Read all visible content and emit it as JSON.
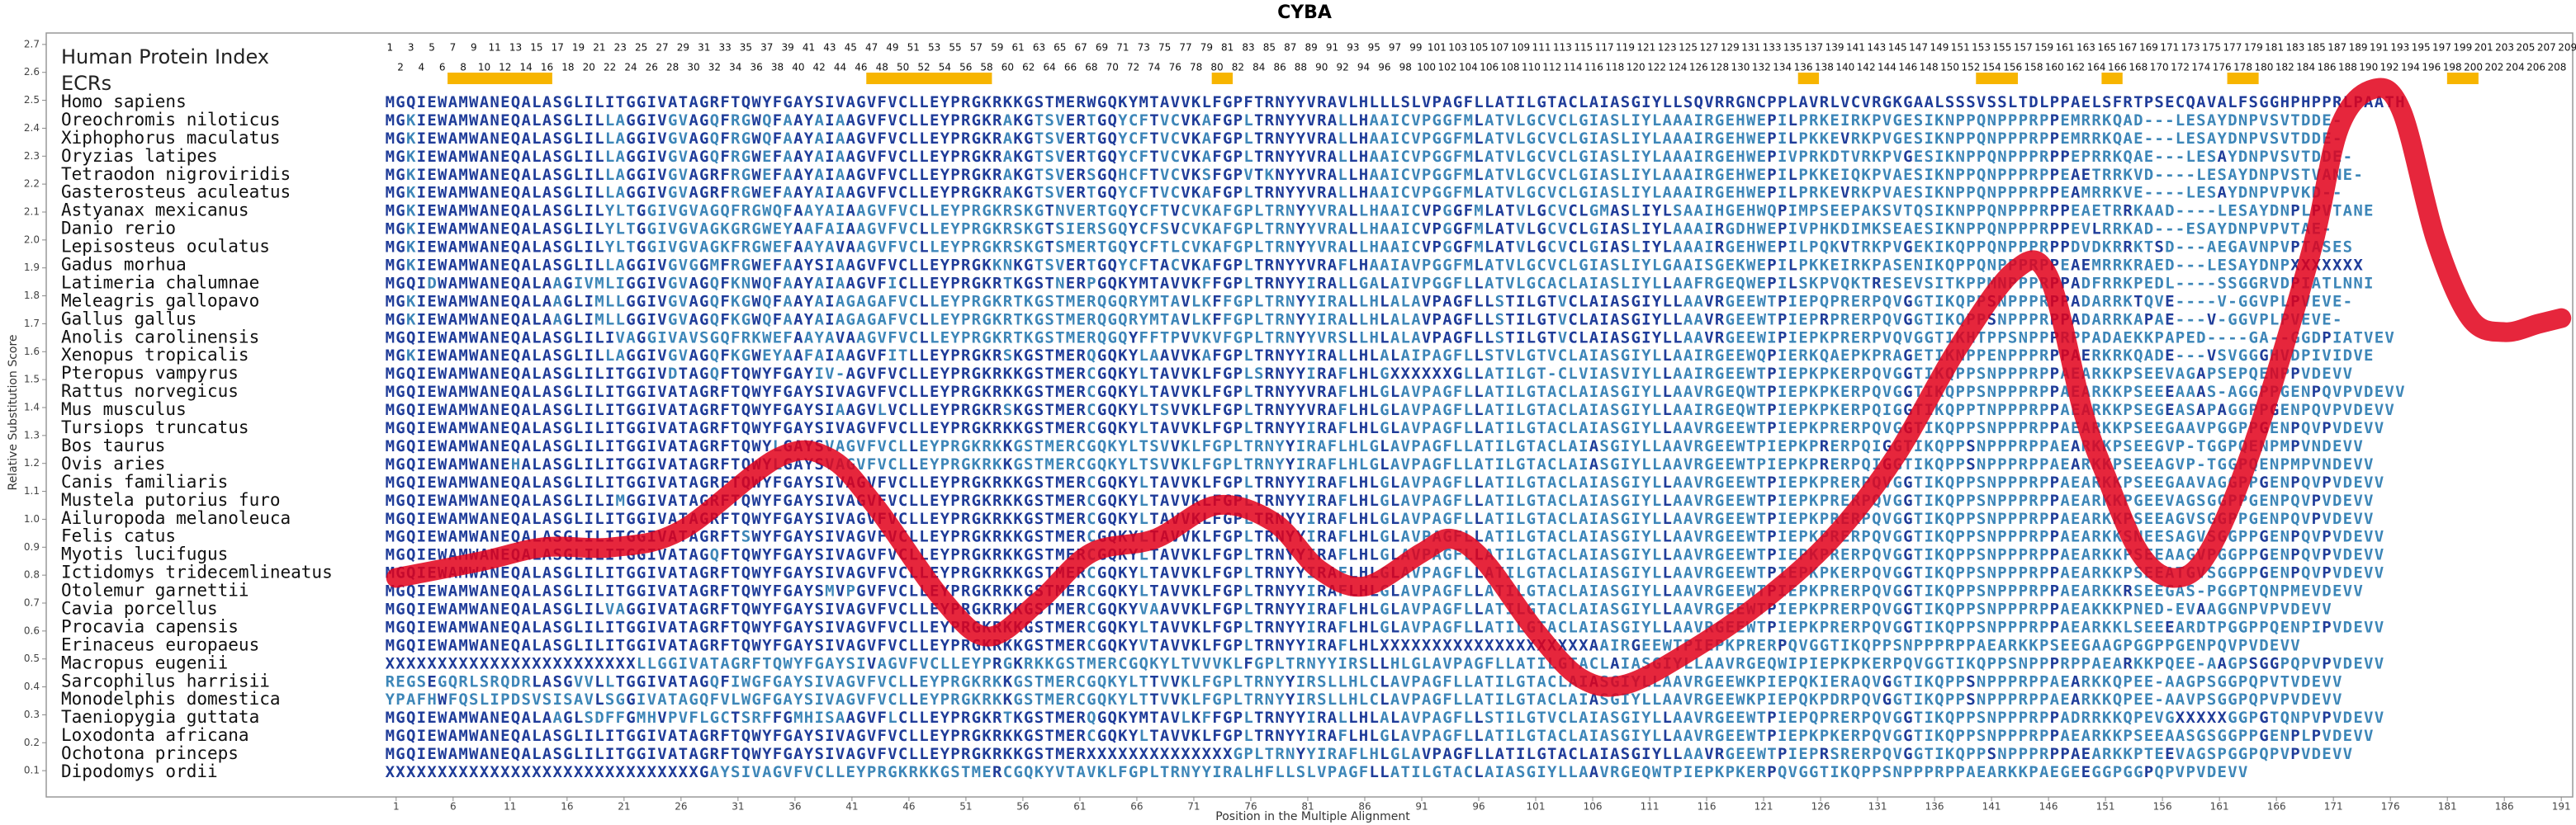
{
  "chart_data": {
    "type": "line",
    "title": "CYBA",
    "index_heading": "Human Protein Index",
    "ecr_heading": "ECRs",
    "x_label": "Position in the Multiple Alignment",
    "y_label": "Relative Substitution Score",
    "xlim": [
      0,
      192
    ],
    "ylim": [
      0,
      2.8
    ],
    "xticks": [
      1,
      6,
      11,
      16,
      21,
      26,
      31,
      36,
      41,
      46,
      51,
      56,
      61,
      66,
      71,
      76,
      81,
      86,
      91,
      96,
      101,
      106,
      111,
      116,
      121,
      126,
      131,
      136,
      141,
      146,
      151,
      156,
      161,
      166,
      171,
      176,
      181,
      186,
      191
    ],
    "yticks": [
      0.1,
      0.2,
      0.3,
      0.4,
      0.5,
      0.6,
      0.7,
      0.8,
      0.9,
      {
        "value": 1,
        "label": "1.0"
      },
      1.1,
      1.2,
      1.3,
      1.4,
      1.5,
      1.6,
      1.7,
      1.8,
      1.9,
      {
        "value": 2,
        "label": "2.0"
      },
      2.1,
      2.2,
      2.3,
      2.4,
      2.5,
      2.6,
      2.7
    ],
    "human_index": [
      1,
      2,
      3,
      4,
      5,
      6,
      7,
      8,
      9,
      10,
      11,
      12,
      13,
      14,
      15,
      16,
      17,
      18,
      19,
      20,
      21,
      22,
      23,
      24,
      25,
      26,
      27,
      28,
      29,
      30,
      31,
      32,
      33,
      34,
      35,
      36,
      37,
      38,
      39,
      40,
      41,
      42,
      43,
      44,
      45,
      46,
      47,
      48,
      49,
      50,
      51,
      52,
      53,
      54,
      55,
      56,
      57,
      58,
      59,
      60,
      61,
      62,
      63,
      64,
      65,
      66,
      67,
      68,
      69,
      70,
      71,
      72,
      73,
      74,
      75,
      76,
      77,
      78,
      79,
      80,
      81,
      82,
      83,
      84,
      85,
      86,
      87,
      88,
      89,
      90,
      91,
      92,
      93,
      94,
      95,
      96,
      97,
      98,
      99,
      100,
      101,
      102,
      103,
      104,
      105,
      106,
      107,
      108,
      109,
      110,
      111,
      112,
      113,
      114,
      115,
      116,
      117,
      118,
      119,
      120,
      121,
      122,
      123,
      124,
      125,
      126,
      127,
      128,
      129,
      130,
      131,
      132,
      133,
      134,
      135,
      136,
      137,
      138,
      139,
      140,
      141,
      142,
      143,
      144,
      145,
      146,
      147,
      148,
      149,
      150,
      151,
      152,
      153,
      154,
      155,
      156,
      157,
      158,
      159,
      160,
      161,
      162,
      163,
      164,
      165,
      166,
      167,
      168,
      169,
      170,
      171,
      172,
      173,
      174,
      175,
      176,
      177,
      178,
      179,
      180,
      181,
      182,
      183,
      184,
      185,
      186,
      187,
      188,
      189,
      190,
      191,
      192,
      193,
      194,
      195,
      196,
      197,
      198,
      199,
      200,
      201,
      202,
      203,
      204,
      205,
      206,
      207,
      208,
      209
    ],
    "ecrs": [
      [
        7,
        16
      ],
      [
        47,
        58
      ],
      [
        80,
        81
      ],
      [
        136,
        137
      ],
      [
        153,
        156
      ],
      [
        165,
        166
      ],
      [
        177,
        179
      ],
      [
        198,
        200
      ]
    ],
    "ecr_color": "#f7b500",
    "conserved_color": "#1f3c99",
    "variant_color": "#3d86b8",
    "rows": [
      {
        "name": "Homo sapiens",
        "sequence": "MGQIEWAMWANEQALASGLILITGGIVATAGRFTQWYFGAYSIVAGVFVCLLEYPRGKRKKGSTMERWGQKYMTAVVKLFGPFTRNYYVRAVLHLLLSLVPAGFLLATILGTACLAIASGIYLLSQVRRGNCPPLAVRLVCVRGKGAALSSSVSSLTDLPPAELSFRTPSECQAVALFSGGHPHPPRLPAATH"
      },
      {
        "name": "Oreochromis niloticus",
        "sequence": "MGKIEWAMWANEQALASGLILLAGGIVGVAGQFRGWQFAAYAIAAGVFVCLLEYPRGKRAKGTSVERTGQYCFTVCVKAFGPLTRNYYVRALLHAAICVPGGFMLATVLGCVCLGIASLIYLAAAIRGEHWEPILPRKEIRKPVGESIKNPPQNPPPRPPEMRRKQAD---LESAYDNPVSVTDDE-"
      },
      {
        "name": "Xiphophorus maculatus",
        "sequence": "MGKIEWAMWANEQALASGLILLAGGIVGVAGQFRGWQFAAYAIAAGVFVCLLEYPRGKRAKGTSVERTGQYCFTVCVKAFGPLTRNYYVRALLHAAICVPGGFMLATVLGCVCLGIASLIYLAAAIRGEHWEPILPKKEVRKPVGESIKNPPQNPPPRPPEMRRKQAE---LESAYDNPVSVTDDE-"
      },
      {
        "name": "Oryzias latipes",
        "sequence": "MGKIEWAMWANEQALASGLILLAGGIVGVAGQFRGWEFAAYAIAAGVFVCLLEYPRGKRAKGTSVERTGQYCFTVCVKAFGPLTRNYYVRALLHAAICVPGGFMLATVLGCVCLGIASLIYLAAAIRGEHWEPIVPRKDTVRKPVGESIKNPPQNPPPRPPEPRRKQAE---LESAYDNPVSVTDDE-"
      },
      {
        "name": "Tetraodon nigroviridis",
        "sequence": "MGKIEWAMWANEQALASGLILLAGGIVGVAGRFRGWEFAAYAIAAGVFVCLLEYPRGKRAKGTSVERSGQHCFTVCVKSFGPVTKNYYVRALLHAAICVPGGFMLATVLGCVCLGIASLIYLAAAIRGEHWEPILPKKEIQKPVAESIKNPPQNPPPRPPEAETRRKVD----LESAYDNPVSTVANE-"
      },
      {
        "name": "Gasterosteus aculeatus",
        "sequence": "MGKIEWAMWANEQALASGLILLAGGIVGVAGRFRGWEFAAYAIAAGVFVCLLEYPRGKRAKGTSVERTGQYCFTVCVKAFGPLTRNYYVRALLHAAICVPGGFMLATVLGCVCLGIASLIYLAAAIRGEHWEPILPRKEVRKPVAESIKNPPQNPPPRPPEAMRRKVE----LESAYDNPVPVKD--"
      },
      {
        "name": "Astyanax mexicanus",
        "sequence": "MGKIEWAMWANEQALASGLILYLTGGIVGVAGQFRGWQFAAYAIAAGVFVCLLEYPRGKRSKGTNVERTGQYCFTVCVKAFGPLTRNYYVRALLHAAICVPGGFMLATVLGCVCLGMASLIYLSAAIHGEHWQPIMPSEEPAKSVTQSIKNPPQNPPPRPPEAETRRKAAD----LESAYDNPLPVTANE"
      },
      {
        "name": "Danio rerio",
        "sequence": "MGKIEWAMWANEQALASGLILYLTGGIVGVAGKGRGWEYAAFAIAAGVFVCLLEYPRGKRSKGTSIERSGQYCFSVCVKAFGPLTRNYYVRALLHAAICVPGGFMLATVLGCVCLGIASLIYLAAAIRGDHWEPIVPHKDIMKSEAESIKNPPQNPPPRPPEVLRRKAD---ESAYDNPVPVTAE-"
      },
      {
        "name": "Lepisosteus oculatus",
        "sequence": "MGKIEWAMWANEQALASGLILYLTGGIVGVAGKFRGWEFAAYAVAAGVFVCLLEYPRGKRSKGTSMERTGQYCFTLCVKAFGPLTRNYYVRALLHAAICVPGGFMLATVLGCVCLGIASLIYLAAAIRGEHWEPILPQKVTRKPVGEKIKQPPQNPPPRPPDVDKRRKTSD---AEGAVNPVPTASES"
      },
      {
        "name": "Gadus morhua",
        "sequence": "MGKIEWAMWANEQALASGLILLAGGIVGVGGMFRGWEFAAYSIAAGVFVCLLEYPRGKKNKGTSVERTGQYCFTACVKAFGPLTRNYYVRAFLHAAIAVPGGFMLATVLGCVCLGIASLIYLGAAISGEKWEPILPKKEIRKPASENIKQPPQNPPPRPPEAEMRRKRAED---LESAYDNPXXXXXXX"
      },
      {
        "name": "Latimeria chalumnae",
        "sequence": "MGQIDWAMWANEQALAAGIVMLIGGIVGVAGQFKNWQFAAYAIAAGVFICLLEYPRGKRTKGSTNERPGQKYMTAVVKFFGPLTRNYYIRALLGALAIVPGGFLLATVLGCACLAIASLIYLLAAFRGEQWEPILSKPVQKTRESEVSITKPPMNPPPRPPADFRRKPEDL----SSGGRVDPIATLNNI"
      },
      {
        "name": "Meleagris gallopavo",
        "sequence": "MGKIEWAMWANEQALAAGLIMLLGGIVGVAGQFKGWQFAAYAIAGAGAFVCLLEYPRGKRTKGSTMERQGQRYMTAVLKFFGPLTRNYYIRALLHLALAVPAGFLLSTILGTVCLAIASGIYLLAAVRGEEWTPIEPQPRERPQVGGTIKQPPSNPPPRPPADARRKTQVE----V-GGVPLPVEVE-"
      },
      {
        "name": "Gallus gallus",
        "sequence": "MGKIEWAMWANEQALAAGLIMLLGGIVGVAGQFKGWQFAAYAIAGAGAFVCLLEYPRGKRTKGSTMERQGQRYMTAVLKFFGPLTRNYYIRALLHLALAVPAGFLLSTILGTVCLAIASGIYLLAAVRGEEWTPIEPRPRERPQVGGTIKQPPSNPPPRPPADARRKAPAE---V-GGVPLPVEVE-"
      },
      {
        "name": "Anolis carolinensis",
        "sequence": "MGQIEWAMWANEQALASGLILIVAGGIVAVSGQFRKWEFAAYAVAAGVFVCLLEYPRGKRTKGSTMERQGQYFFTPVVKVFGPLTRNYYVRSLLHLALAVPAGFLLSTILGTVCLAIASGIYLLAAVRGEEWIPIEPKPRERPVQVGGTIKHTPPSNPPPRPPADAEKKPAPED----GA--GGDPIATVEV"
      },
      {
        "name": "Xenopus tropicalis",
        "sequence": "MGKIEWAMWANEQALASGLILLAGGIVGVAGQFKGWEYAAFAIAAGVFITLLEYPRGKRSKGSTMERQGQKYLAAVVKAFGPLTRNYYIRALLHLALAIPAGFLLSTVLGTVCLAIASGIYLLAAIRGEEWQPIERKQAEPKPRAGETIKNPPENPPPRPPAERKRKQADE---VSVGGGHVDPIVIDVE"
      },
      {
        "name": "Pteropus vampyrus",
        "sequence": "MGQIEWAMWANEQALASGLILITGGIVDTAGQFTQWYFGAYIV-AGVFVCLLEYPRGKRKKGSTMERCGQKYLTAVVKLFGPLSRNYYIRAFLHLGXXXXXXGLLATILGT-CLVIASVIYLLAAIRGEEWTPIEPKPKERPQVGGTIKQPPSNPPPRPPAEARKKPSEEVAGAPSEPQENPPVDEVV"
      },
      {
        "name": "Rattus norvegicus",
        "sequence": "MGQIEWAMWANEQALASGLILITGGIVATAGRFTQWYFGAYSIVAGVFVCLLEYPRGKRKKGSTMERCGQKYLTAVVKLFGPLTRNYYVRAFLHLGLAVPAGFLLATILGTACLAIASGIYLLAAVRGEQWTPIEPKPKERPQVGGTIKQPPSNPPPRPPAEARKKPSEEEAAAS-AGGPPGENPQVPVDEVV"
      },
      {
        "name": "Mus musculus",
        "sequence": "MGQIEWAMWANEQALASGLILITGGIVATAGRFTQWYFGAYSIAAGVLVCLLEYPRGKRSKGSTMERCGQKYLTSVVKLFGPLTRNYYVRAFLHLGLAVPAGFLLATILGTACLAIASGIYLLAAIRGEQWTPIEPKPKERPQIGGTIKQPPTNPPPRPPAEARKKPSEGEASAPAGGPPGENPQVPVDEVV"
      },
      {
        "name": "Tursiops truncatus",
        "sequence": "MGQIEWAMWANEQALASGLILITGGIVATAGRFTQWYFGAYSIVAGVFVCLLEYPRGKRKKGSTMERCGQKYLTAVVKLFGPLTRNYYIRAFLHLGLAVPAGFLLATILGTACLAIASGIYLLAAVRGEEWTPIEPKPRERPQVGGTIKQPPSNPPPRPPAEARKKPSEEGAAVPGGPPGENPQVPVDEVV"
      },
      {
        "name": "Bos taurus",
        "sequence": "MGQIEWAMWANEQALASGLILITGGIVATAGRFTQWYLGAYSVAGVFVCLLEYPRGKRKKGSTMERCGQKYLTSVVKLFGPLTRNYYIRAFLHLGLAVPAGFLLATILGTACLAIASGIYLLAAVRGEEWTPIEPKPRERPQIGGTIKQPPSNPPPRPPAEARKKPSEEGVP-TGGPQENPMPVNDEVV"
      },
      {
        "name": "Ovis aries",
        "sequence": "MGQIEWAMWANEHALASGLILITGGIVATAGRFTQWYLGAYSVAGVFVCLLEYPRGKRKKGSTMERCGQKYLTSVVKLFGPLTRNYYIRAFLHLGLAVPAGFLLATILGTACLAIASGIYLLAAVRGEEWTPIEPKPRERPQIGGTIKQPPSNPPPRPPAEARKKPSEEAGVP-TGGPQENPMPVNDEVV"
      },
      {
        "name": "Canis familiaris",
        "sequence": "MGQIEWAMWANEQALASGLILITGGIVATAGRFTQWYFGAYSIVAGVFVCLLEYPRGKRKKGSTMERCGQKYLTAVVKLFGPLTRNYYIRAFLHLGLAVPAGFLLATILGTACLAIASGIYLLAAVRGEEWTPIEPKPRERPQVGGTIKQPPSNPPPRPPAEARKKPSEEGAAVAGGPPGENPQVPVDEVV"
      },
      {
        "name": "Mustela putorius furo",
        "sequence": "MGQIEWAMWANEQALASGLILIMGGIVATAGRFTQWYFGAYSIVAGVFVCLLEYPRGKRKKGSTMERCGQKYLTAVVKLFGPLTRNYYIRAFLHLGLAVPAGFLLATILGTACLAIASGIYLLAAVRGEEWTPIEPKPRERPQVGGTIKQPPSNPPPRPPAEARKKPGEEVAGSGGPPGENPQVPVDEVV"
      },
      {
        "name": "Ailuropoda melanoleuca",
        "sequence": "MGQIEWAMWANEQALASGLILITGGIVATAGRFTQWYFGAYSIVAGVFVCLLEYPRGKRKKGSTMERCGQKYLTAVVKLFGPLTRNYYIRAFLHLGLAVPAGFLLATILGTACLAIASGIYLLAAVRGEEWTPIEPKPRERPQVGGTIKQPPSNPPPRPPAEARKKPSEEAGVSGGPPGENPQVPVDEVV"
      },
      {
        "name": "Felis catus",
        "sequence": "MGQIEWAMWANEQALASGLILITGGIVATAGRFTSWYFGAYSIVAGVFVCLLEYPRGKRKKGSTMERCGQKYLTAVVKLFGPLTRNYYIRAFLHLGLAVPAGFLLATILGTACLAIASGIYLLAAVRGEEWTPIEPKPRERPQVGGTIKQPPSNPPPRPPAEARKKSNEESAGVSGGPPGENPQVPVDEVV"
      },
      {
        "name": "Myotis lucifugus",
        "sequence": "MGQIEWAMWANEQALASGLILITGGIVATAGQFTQWYFGAYSIVAGVFVCLLEYPRGKRKKGSTMERCGQKYLTAVVKLFGPLTRNYYIRAFLHLGLAVPAGFLLATILGTACLAIASGIYLLAAVRGEEWTPIEPKPRERPQVGGTIKQPPSNPPPRPPAEARKKPSEEAAGVPGGPPGENPQVPVDEVV"
      },
      {
        "name": "Ictidomys tridecemlineatus",
        "sequence": "MGQIEWAMWANEQALASGLILITGGIVATAGRFTQWYFGAYSIVAGVFVCLLEYPRGKRKKGSTMERCGQKYLTAVVKLFGPLTRNYYIRAFLHLGLAVPAGFLLATILGTACLAIASGIYLLAAVRGEEWTPIEPKPKERPQVGGTIKQPPSNPPPRPPAEARKKPSEEATGVSGGPPGENPQVPVDEVV"
      },
      {
        "name": "Otolemur garnettii",
        "sequence": "MGQIEWAMWANEQALASGLILITGGIVATAGRFTQWYFGAYSMVPGVFVCLLEYPRGKRKKGSTMERCGQKYLTAVVKLFGPLTRNYYIRAFLHLGLAVPAGFLLATILGTACLAIASGIYLLAAVRGEEWTPIEPKPRERPQVGGTIKQPPSNPPPRPPAEARKKRSEEGAS-PGGPTQNPMEVDEVV"
      },
      {
        "name": "Cavia porcellus",
        "sequence": "MGQIEWAMWANEQALASGLILVAGGIVATAGRFTQWYFGAYSIVAGVFVCLLEYPRGKRKKGSTMERCGQKYVAAVVKLFGPLTRNYYIRAFLHLGLAVPAGFLLATILGTACLAIASGIYLLAAVRGEEWTPIEPKPRERPQVGGTIKQPPSNPPPRPPAEAKKKPNED-EVAAGGNPVPVDEVV"
      },
      {
        "name": "Procavia capensis",
        "sequence": "MGQIEWAMWANEQALASGLILITGGIVATAGRFTQWYFGAYSIVAGVFVCLLEYPRGKRKKGSTMERCGQKYLTAVVKLFGPLTRNYYIRAFLHLGLAVPAGFLLATILGTACLAIASGIYLLAAVRGEEWTPIEPKPRERPQVGGTIKQPPSNPPPRPPAEARKKLSEEEARDTPGGPPQENPIPVDEVV"
      },
      {
        "name": "Erinaceus europaeus",
        "sequence": "MGQIEWAMWANEQALASGLILITGGIVATAGRFTQWYFGAYSIVAGVFVCLLEYPRGKRKKGSTMERCGQKYVTAVVKLFGPLTRNYYIRAFLHLXXXXXXXXXXXXXXXXXXXXAAIRGEEWTPIEPKPRERPQVGGTIKQPPSNPPPRPPAEARKKPSEEGAAGPGGPPGENPQVPVDEVV"
      },
      {
        "name": "Macropus eugenii",
        "sequence": "XXXXXXXXXXXXXXXXXXXXXXXXLLGGIVATAGRFTQWYFGAYSIVAGVFVCLLEYPRGKRKKGSTMERCGQKYLTVVVKLFGPLTRNYYIRSLLHLGLAVPAGFLLATILGTACLAIASGIYLLAAVRGEQWIPIEPKPKERPQVGGTIKQPPSNPPPRPPAEARKKPQEE-AAGPSGGPQPVPVDEVV"
      },
      {
        "name": "Sarcophilus harrisii",
        "sequence": "REGSEGQRLSRQDRLASGVVLLTGGIVATAGQFIWGFGAYSIVAGVFVCLLEYPRGKRKKGSTMERCGQKYLTTVVKLFGPLTRNYYIRSLLHLCLAVPAGFLLATILGTACLAIASGIYLLAAVRGEEWKPIEPQKIERAQVGGTIKQPPSNPPPRPPAEARKKQPEE-AAGPSGGPQPVTVDEVV"
      },
      {
        "name": "Monodelphis domestica",
        "sequence": "YPAFHWFQSLIPDSVSISAVLSGGIVATAGQFVLWGFGAYSIVAGVFVCLLEYPRGKRKKGSTMERCGQKYLTTVVKLFGPLTRNYYIRSLLHLCLAVPAGFLLATILGTACLAIASGIYLLAAVRGEEWKPIEPQKPDRPQVGGTIKQPPSNPPPRPPAEARKKQPEE-AAVPSGGPQPVPVDEVV"
      },
      {
        "name": "Taeniopygia guttata",
        "sequence": "MGQIEWAMWANEQALAAGLSDFFGMHVPVFLGCTSRFFGMHISAAGVFLCLLEYPRGKRTKGSTMERQGQKYMTAVLKFFGPLTRNYYIRALLHLALAVPAGFLLSTILGTVCLAIASGIYLLAAVRGEEWTPIEPQPRERPQVGGTIKQPPSNPPPRPPADRRKKQPEVGXXXXXGGPGTQNPVPVDEVV"
      },
      {
        "name": "Loxodonta africana",
        "sequence": "MGQIEWAMWANEQALASGLILITGGIVATAGRFTQWYFGAYSIVAGVFVCLLEYPRGKRKKGSTMERCGQKYLTAVVKLFGPLTRNYYIRAFLHLGLAVPAGFLLATILGTACLAIASGIYLLAAVRGEEWTPIEPKPKERPQVGGTIKQPPSNPPPRPPAEARKKPSEEAASGSGGPPGENPLPVDEVV"
      },
      {
        "name": "Ochotona princeps",
        "sequence": "MGQIEWAMWANEQALASGLILITGGIVATAGRFTQWYFGAYSIVAGVFVCLLEYPRGKRKKGSTMERXXXXXXXXXXXXXXGPLTRNYYIRAFLHLGLAVPAGFLLATILGTACLAIASGIYLLAAVRGEEWTPIEPRSRERPQVGGTIKQPPSNPPPRPPAEARKKPTEEVAGSPGGPQPVPVDEVV"
      },
      {
        "name": "Dipodomys ordii",
        "sequence": "XXXXXXXXXXXXXXXXXXXXXXXXXXXXXXGAYSIVAGVFVCLLEYPRGKRKKGSTMERCGQKYVTAVKLFGPLTRNYYIRALHFLLSLVPAGFLLATILGTACLAIASGIYLLAAVRGEQWTPIEPKPKERPQVGGTIKQPPSNPPPRPPAEARKKPAEGEEGGPGGPQPVPVDEVV"
      }
    ],
    "series": [
      {
        "color": "#e2001a",
        "x": [
          1,
          8.5,
          14,
          20,
          26,
          34.5,
          39,
          43,
          49,
          53,
          57.5,
          62,
          67.6,
          73,
          78,
          82,
          86,
          91,
          93.6,
          96.5,
          101,
          105,
          109,
          115,
          121,
          127,
          132.5,
          138,
          143,
          146,
          149,
          151,
          154,
          157,
          160,
          164,
          169,
          171.5,
          174.5,
          177,
          180,
          183,
          186,
          189,
          191
        ],
        "values": [
          0.79,
          0.85,
          0.9,
          0.9,
          0.96,
          1.22,
          1.22,
          1.05,
          0.71,
          0.58,
          0.71,
          0.88,
          0.93,
          1.05,
          0.99,
          0.82,
          0.76,
          0.88,
          0.93,
          0.85,
          0.6,
          0.43,
          0.41,
          0.54,
          0.71,
          0.93,
          1.22,
          1.61,
          1.89,
          1.87,
          1.39,
          1.16,
          0.88,
          0.79,
          0.88,
          1.27,
          1.95,
          2.4,
          2.54,
          2.46,
          2.0,
          1.72,
          1.67,
          1.7,
          1.72
        ]
      }
    ]
  }
}
